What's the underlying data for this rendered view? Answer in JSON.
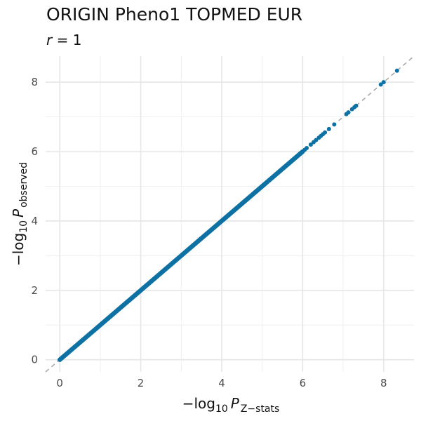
{
  "title": "ORIGIN Pheno1 TOPMED EUR",
  "subtitle": {
    "symbol": "r",
    "rest": " = 1"
  },
  "chart_data": {
    "type": "scatter",
    "title": "ORIGIN Pheno1 TOPMED EUR",
    "subtitle": "r = 1",
    "xlabel": {
      "prefix": "−log",
      "sub1": "10",
      "var": "P",
      "sub2": "Z−stats"
    },
    "ylabel": {
      "prefix": "−log",
      "sub1": "10",
      "var": "P",
      "sub2": "observed"
    },
    "xlim": [
      -0.35,
      8.75
    ],
    "ylim": [
      -0.35,
      8.75
    ],
    "xticks": [
      0,
      2,
      4,
      6,
      8
    ],
    "yticks": [
      0,
      2,
      4,
      6,
      8
    ],
    "grid": true,
    "reference_line": {
      "slope": 1,
      "intercept": 0,
      "style": "dashed",
      "color": "#a6a6a6"
    },
    "point_color": "#0d72a3",
    "dense_band": {
      "from": 0,
      "to": 6.0
    },
    "points": [
      {
        "x": 6.05,
        "y": 6.05
      },
      {
        "x": 6.1,
        "y": 6.1
      },
      {
        "x": 6.2,
        "y": 6.2
      },
      {
        "x": 6.27,
        "y": 6.27
      },
      {
        "x": 6.33,
        "y": 6.33
      },
      {
        "x": 6.4,
        "y": 6.4
      },
      {
        "x": 6.45,
        "y": 6.45
      },
      {
        "x": 6.5,
        "y": 6.5
      },
      {
        "x": 6.55,
        "y": 6.55
      },
      {
        "x": 6.65,
        "y": 6.65
      },
      {
        "x": 6.78,
        "y": 6.78
      },
      {
        "x": 7.08,
        "y": 7.08
      },
      {
        "x": 7.13,
        "y": 7.13
      },
      {
        "x": 7.22,
        "y": 7.22
      },
      {
        "x": 7.28,
        "y": 7.28
      },
      {
        "x": 7.32,
        "y": 7.32
      },
      {
        "x": 7.93,
        "y": 7.93
      },
      {
        "x": 8.0,
        "y": 8.0
      },
      {
        "x": 8.33,
        "y": 8.33
      }
    ]
  }
}
